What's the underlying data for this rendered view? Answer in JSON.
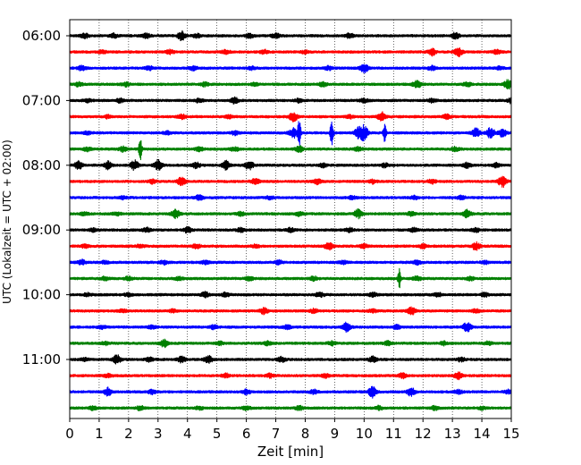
{
  "chart_data": {
    "type": "line",
    "title": "",
    "xlabel": "Zeit  [min]",
    "ylabel": "UTC (Lokalzeit = UTC + 02:00)",
    "xlim": [
      0,
      15
    ],
    "x_ticks": [
      "0",
      "1",
      "2",
      "3",
      "4",
      "5",
      "6",
      "7",
      "8",
      "9",
      "10",
      "11",
      "12",
      "13",
      "14",
      "15"
    ],
    "y_ticks": [
      "06:00",
      "07:00",
      "08:00",
      "09:00",
      "10:00",
      "11:00"
    ],
    "series_colors": [
      "#000000",
      "#ff0000",
      "#0000ff",
      "#008000"
    ],
    "traces": [
      {
        "start": "06:00",
        "color": "#000000",
        "events": [
          [
            0.5,
            0.5
          ],
          [
            1.5,
            0.4
          ],
          [
            2.6,
            0.5
          ],
          [
            3.8,
            0.9
          ],
          [
            4.3,
            0.4
          ],
          [
            6.1,
            0.4
          ],
          [
            7.0,
            0.5
          ],
          [
            9.5,
            0.5
          ],
          [
            13.1,
            0.6
          ]
        ]
      },
      {
        "start": "06:15",
        "color": "#ff0000",
        "events": [
          [
            1.1,
            0.3
          ],
          [
            3.4,
            0.4
          ],
          [
            5.3,
            0.4
          ],
          [
            6.6,
            0.4
          ],
          [
            8.0,
            0.3
          ],
          [
            12.3,
            0.7
          ],
          [
            13.2,
            0.9
          ],
          [
            14.5,
            0.4
          ]
        ]
      },
      {
        "start": "06:30",
        "color": "#0000ff",
        "events": [
          [
            0.4,
            0.4
          ],
          [
            2.7,
            0.4
          ],
          [
            4.2,
            0.4
          ],
          [
            6.2,
            0.3
          ],
          [
            8.8,
            0.4
          ],
          [
            10.0,
            0.9
          ],
          [
            12.3,
            0.4
          ],
          [
            14.6,
            0.3
          ]
        ]
      },
      {
        "start": "06:45",
        "color": "#008000",
        "events": [
          [
            0.3,
            0.4
          ],
          [
            1.9,
            0.4
          ],
          [
            4.6,
            0.4
          ],
          [
            6.3,
            0.3
          ],
          [
            8.6,
            0.4
          ],
          [
            11.8,
            0.8
          ],
          [
            13.5,
            0.4
          ],
          [
            14.9,
            1.0
          ]
        ]
      },
      {
        "start": "07:00",
        "color": "#000000",
        "events": [
          [
            0.6,
            0.3
          ],
          [
            1.7,
            0.4
          ],
          [
            4.4,
            0.4
          ],
          [
            5.6,
            0.6
          ],
          [
            7.8,
            0.4
          ],
          [
            10.0,
            0.4
          ],
          [
            12.3,
            0.4
          ],
          [
            15.0,
            0.5
          ]
        ]
      },
      {
        "start": "07:15",
        "color": "#ff0000",
        "events": [
          [
            1.3,
            0.3
          ],
          [
            3.8,
            0.5
          ],
          [
            5.4,
            0.3
          ],
          [
            7.6,
            1.0
          ],
          [
            9.5,
            0.3
          ],
          [
            10.6,
            0.9
          ],
          [
            12.8,
            0.4
          ]
        ]
      },
      {
        "start": "07:30",
        "color": "#0000ff",
        "events": [
          [
            0.6,
            0.3
          ],
          [
            3.3,
            0.3
          ],
          [
            5.6,
            0.4
          ],
          [
            7.6,
            1.0
          ],
          [
            7.8,
            3.2
          ],
          [
            8.9,
            3.0
          ],
          [
            9.8,
            1.0
          ],
          [
            10.0,
            1.5
          ],
          [
            10.7,
            2.0
          ],
          [
            13.8,
            0.9
          ],
          [
            14.3,
            1.2
          ],
          [
            14.7,
            0.8
          ]
        ]
      },
      {
        "start": "07:45",
        "color": "#008000",
        "events": [
          [
            0.6,
            0.4
          ],
          [
            1.8,
            0.5
          ],
          [
            2.4,
            2.4
          ],
          [
            4.4,
            0.4
          ],
          [
            5.6,
            0.4
          ],
          [
            7.8,
            0.6
          ],
          [
            9.8,
            0.4
          ],
          [
            13.1,
            0.4
          ]
        ]
      },
      {
        "start": "08:00",
        "color": "#000000",
        "events": [
          [
            0.3,
            0.8
          ],
          [
            1.3,
            0.8
          ],
          [
            2.2,
            1.0
          ],
          [
            3.0,
            1.1
          ],
          [
            4.3,
            0.6
          ],
          [
            5.3,
            0.9
          ],
          [
            6.1,
            0.9
          ],
          [
            8.6,
            0.4
          ],
          [
            10.7,
            0.4
          ],
          [
            13.5,
            0.5
          ],
          [
            14.5,
            0.4
          ]
        ]
      },
      {
        "start": "08:15",
        "color": "#ff0000",
        "events": [
          [
            2.8,
            0.4
          ],
          [
            3.8,
            1.0
          ],
          [
            6.3,
            0.6
          ],
          [
            8.4,
            0.5
          ],
          [
            10.3,
            0.4
          ],
          [
            12.3,
            0.4
          ],
          [
            14.7,
            1.2
          ]
        ]
      },
      {
        "start": "08:30",
        "color": "#0000ff",
        "events": [
          [
            1.8,
            0.3
          ],
          [
            4.4,
            0.5
          ],
          [
            6.8,
            0.3
          ],
          [
            9.6,
            0.3
          ],
          [
            11.7,
            0.3
          ],
          [
            13.3,
            0.4
          ]
        ]
      },
      {
        "start": "08:45",
        "color": "#008000",
        "events": [
          [
            0.5,
            0.3
          ],
          [
            1.6,
            0.3
          ],
          [
            3.6,
            1.0
          ],
          [
            5.8,
            0.4
          ],
          [
            7.8,
            0.4
          ],
          [
            9.8,
            0.9
          ],
          [
            11.6,
            0.4
          ],
          [
            13.5,
            0.8
          ]
        ]
      },
      {
        "start": "09:00",
        "color": "#000000",
        "events": [
          [
            0.8,
            0.3
          ],
          [
            2.6,
            0.4
          ],
          [
            4.0,
            0.6
          ],
          [
            5.8,
            0.4
          ],
          [
            7.5,
            0.4
          ],
          [
            9.5,
            0.4
          ],
          [
            11.7,
            0.4
          ],
          [
            13.8,
            0.4
          ]
        ]
      },
      {
        "start": "09:15",
        "color": "#ff0000",
        "events": [
          [
            0.5,
            0.3
          ],
          [
            2.4,
            0.3
          ],
          [
            4.3,
            0.5
          ],
          [
            6.3,
            0.3
          ],
          [
            8.8,
            0.8
          ],
          [
            10.0,
            0.4
          ],
          [
            12.0,
            0.4
          ],
          [
            13.8,
            0.8
          ]
        ]
      },
      {
        "start": "09:30",
        "color": "#0000ff",
        "events": [
          [
            0.4,
            0.5
          ],
          [
            1.2,
            0.3
          ],
          [
            3.2,
            0.4
          ],
          [
            4.6,
            0.4
          ],
          [
            7.1,
            0.4
          ],
          [
            9.3,
            0.3
          ],
          [
            11.8,
            0.4
          ],
          [
            14.1,
            0.3
          ]
        ]
      },
      {
        "start": "09:45",
        "color": "#008000",
        "events": [
          [
            1.2,
            0.4
          ],
          [
            2.0,
            0.4
          ],
          [
            3.7,
            0.3
          ],
          [
            6.1,
            0.4
          ],
          [
            8.3,
            0.4
          ],
          [
            11.2,
            2.0
          ],
          [
            11.8,
            0.5
          ],
          [
            13.6,
            0.4
          ]
        ]
      },
      {
        "start": "10:00",
        "color": "#000000",
        "events": [
          [
            0.6,
            0.3
          ],
          [
            2.0,
            0.3
          ],
          [
            4.6,
            0.5
          ],
          [
            5.3,
            0.4
          ],
          [
            8.5,
            0.5
          ],
          [
            10.3,
            0.4
          ],
          [
            12.5,
            0.4
          ],
          [
            14.1,
            0.4
          ]
        ]
      },
      {
        "start": "10:15",
        "color": "#ff0000",
        "events": [
          [
            1.8,
            0.3
          ],
          [
            3.5,
            0.3
          ],
          [
            6.6,
            0.6
          ],
          [
            8.3,
            0.4
          ],
          [
            10.3,
            0.3
          ],
          [
            11.6,
            0.8
          ],
          [
            13.8,
            0.4
          ]
        ]
      },
      {
        "start": "10:30",
        "color": "#0000ff",
        "events": [
          [
            1.1,
            0.3
          ],
          [
            2.8,
            0.3
          ],
          [
            4.9,
            0.4
          ],
          [
            7.4,
            0.4
          ],
          [
            9.4,
            0.9
          ],
          [
            11.1,
            0.4
          ],
          [
            13.5,
            1.0
          ]
        ]
      },
      {
        "start": "10:45",
        "color": "#008000",
        "events": [
          [
            1.2,
            0.3
          ],
          [
            3.2,
            0.8
          ],
          [
            5.1,
            0.3
          ],
          [
            6.7,
            0.4
          ],
          [
            8.9,
            0.4
          ],
          [
            10.8,
            0.4
          ],
          [
            12.7,
            0.4
          ],
          [
            14.2,
            0.3
          ]
        ]
      },
      {
        "start": "11:00",
        "color": "#000000",
        "events": [
          [
            0.5,
            0.3
          ],
          [
            1.6,
            0.9
          ],
          [
            2.7,
            0.4
          ],
          [
            3.8,
            0.6
          ],
          [
            4.7,
            0.8
          ],
          [
            7.2,
            0.5
          ],
          [
            10.3,
            0.6
          ],
          [
            13.3,
            0.4
          ]
        ]
      },
      {
        "start": "11:15",
        "color": "#ff0000",
        "events": [
          [
            1.3,
            0.3
          ],
          [
            5.3,
            0.4
          ],
          [
            6.8,
            0.4
          ],
          [
            8.7,
            0.4
          ],
          [
            11.3,
            0.5
          ],
          [
            13.2,
            0.7
          ]
        ]
      },
      {
        "start": "11:30",
        "color": "#0000ff",
        "events": [
          [
            1.3,
            0.8
          ],
          [
            2.8,
            0.4
          ],
          [
            6.0,
            0.5
          ],
          [
            8.3,
            0.4
          ],
          [
            10.3,
            1.3
          ],
          [
            11.6,
            0.9
          ],
          [
            13.2,
            0.4
          ],
          [
            14.9,
            0.4
          ]
        ]
      },
      {
        "start": "11:45",
        "color": "#008000",
        "events": [
          [
            0.8,
            0.4
          ],
          [
            2.4,
            0.4
          ],
          [
            4.4,
            0.3
          ],
          [
            6.0,
            0.4
          ],
          [
            7.8,
            0.4
          ],
          [
            10.5,
            0.4
          ],
          [
            12.4,
            0.4
          ],
          [
            14.0,
            0.3
          ]
        ]
      }
    ]
  }
}
